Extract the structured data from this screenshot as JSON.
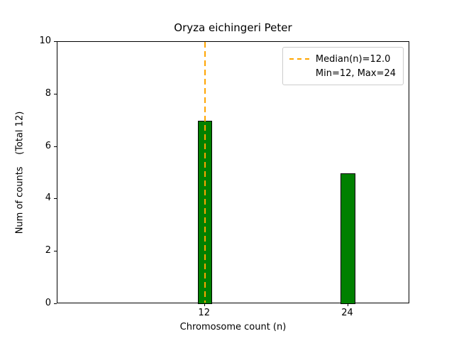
{
  "chart_data": {
    "type": "bar",
    "title": "Oryza eichingeri Peter",
    "xlabel": "Chromosome count (n)",
    "ylabel": "Num of counts    (Total 12)",
    "categories": [
      12,
      24
    ],
    "values": [
      7,
      5
    ],
    "bar_color": "#008000",
    "bar_edge_color": "#000000",
    "bar_width_units": 1.2,
    "xlim": [
      -0.35,
      29.2
    ],
    "ylim": [
      0,
      10
    ],
    "xticks": [
      12,
      24
    ],
    "yticks": [
      0,
      2,
      4,
      6,
      8,
      10
    ],
    "grid": false,
    "median_line": {
      "x": 12,
      "color": "#FFA500",
      "style": "dashed"
    },
    "legend": {
      "position": "upper-right",
      "entries": [
        {
          "label": "Median(n)=12.0",
          "marker": "dashed-line",
          "color": "#FFA500"
        },
        {
          "label": "Min=12, Max=24",
          "marker": "none",
          "color": ""
        }
      ]
    }
  }
}
